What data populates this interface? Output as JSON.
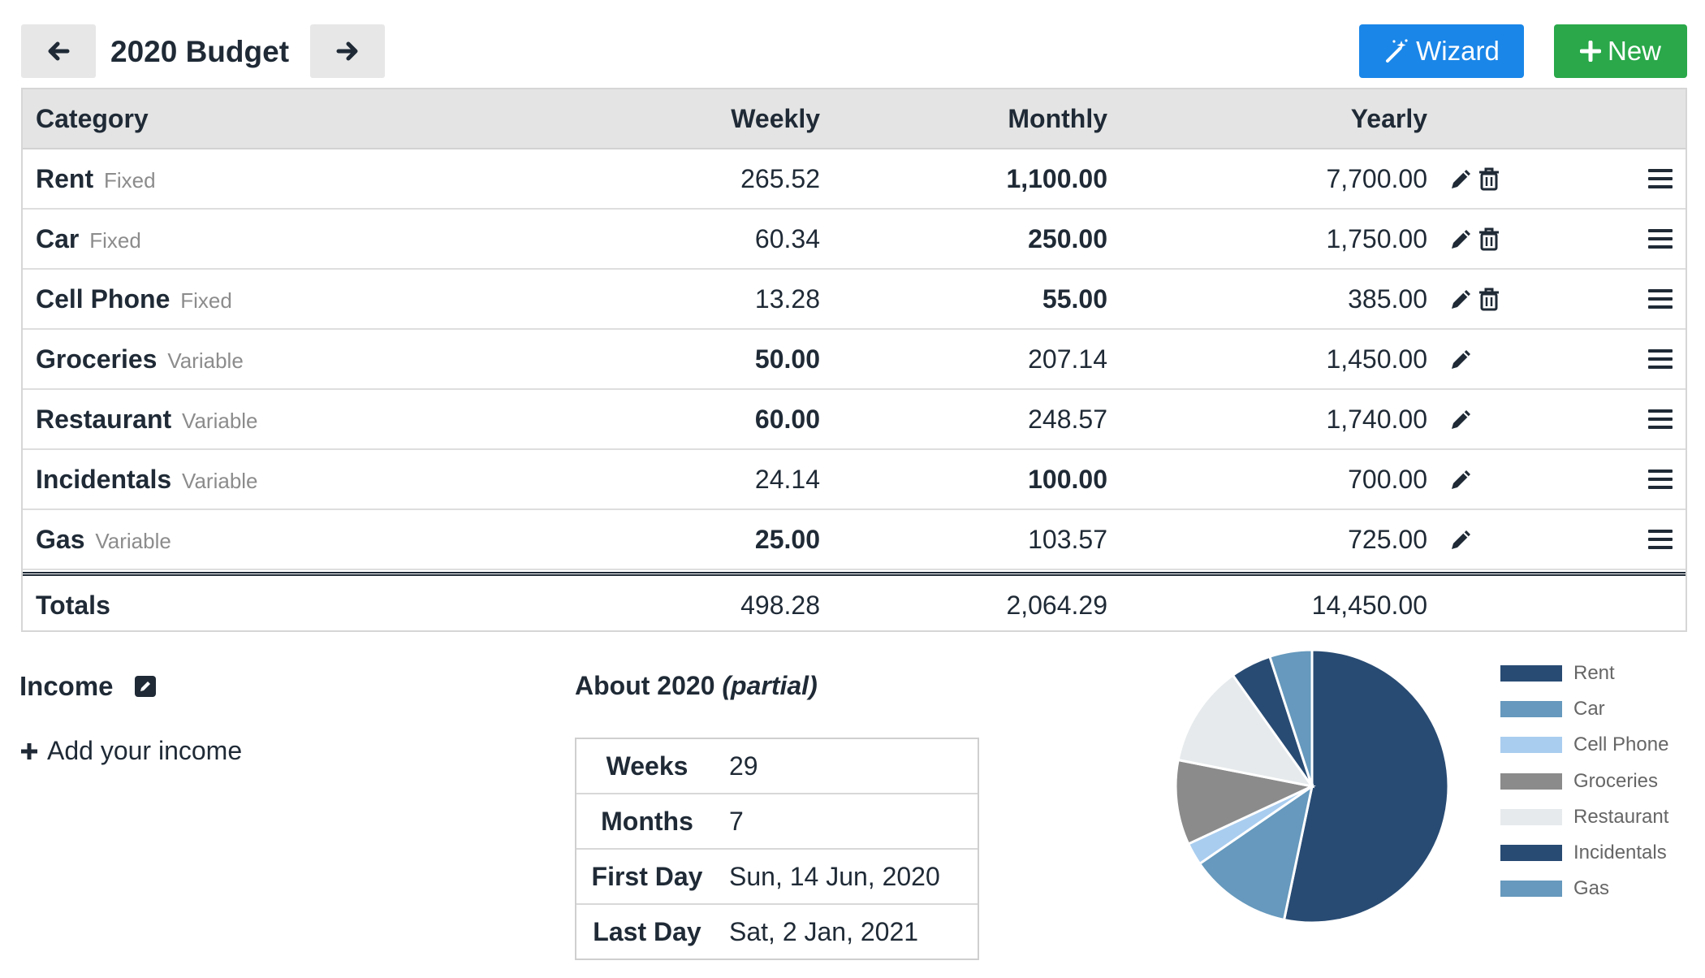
{
  "header": {
    "title": "2020 Budget",
    "wizard_label": "Wizard",
    "new_label": "New"
  },
  "table": {
    "columns": [
      "Category",
      "Weekly",
      "Monthly",
      "Yearly"
    ],
    "rows": [
      {
        "name": "Rent",
        "type": "Fixed",
        "weekly": "265.52",
        "monthly": "1,100.00",
        "yearly": "7,700.00",
        "bold": "monthly"
      },
      {
        "name": "Car",
        "type": "Fixed",
        "weekly": "60.34",
        "monthly": "250.00",
        "yearly": "1,750.00",
        "bold": "monthly"
      },
      {
        "name": "Cell Phone",
        "type": "Fixed",
        "weekly": "13.28",
        "monthly": "55.00",
        "yearly": "385.00",
        "bold": "monthly"
      },
      {
        "name": "Groceries",
        "type": "Variable",
        "weekly": "50.00",
        "monthly": "207.14",
        "yearly": "1,450.00",
        "bold": "weekly"
      },
      {
        "name": "Restaurant",
        "type": "Variable",
        "weekly": "60.00",
        "monthly": "248.57",
        "yearly": "1,740.00",
        "bold": "weekly"
      },
      {
        "name": "Incidentals",
        "type": "Variable",
        "weekly": "24.14",
        "monthly": "100.00",
        "yearly": "700.00",
        "bold": "monthly"
      },
      {
        "name": "Gas",
        "type": "Variable",
        "weekly": "25.00",
        "monthly": "103.57",
        "yearly": "725.00",
        "bold": "weekly"
      }
    ],
    "totals": {
      "label": "Totals",
      "weekly": "498.28",
      "monthly": "2,064.29",
      "yearly": "14,450.00"
    }
  },
  "income": {
    "title": "Income",
    "add_label": "Add your income"
  },
  "about": {
    "title": "About 2020",
    "qualifier": "(partial)",
    "rows": [
      {
        "label": "Weeks",
        "value": "29"
      },
      {
        "label": "Months",
        "value": "7"
      },
      {
        "label": "First Day",
        "value": "Sun, 14 Jun, 2020"
      },
      {
        "label": "Last Day",
        "value": "Sat, 2 Jan, 2021"
      }
    ]
  },
  "colors": {
    "wizard": "#1a86e8",
    "new": "#2aa84a"
  },
  "chart_data": {
    "type": "pie",
    "labels": [
      "Rent",
      "Car",
      "Cell Phone",
      "Groceries",
      "Restaurant",
      "Incidentals",
      "Gas"
    ],
    "values": [
      7700,
      1750,
      385,
      1450,
      1740,
      700,
      725
    ],
    "colors": [
      "#284b73",
      "#6699bd",
      "#a9cdef",
      "#8b8b8b",
      "#e6eaec",
      "#284b73",
      "#6699bd"
    ],
    "legend_position": "right"
  }
}
